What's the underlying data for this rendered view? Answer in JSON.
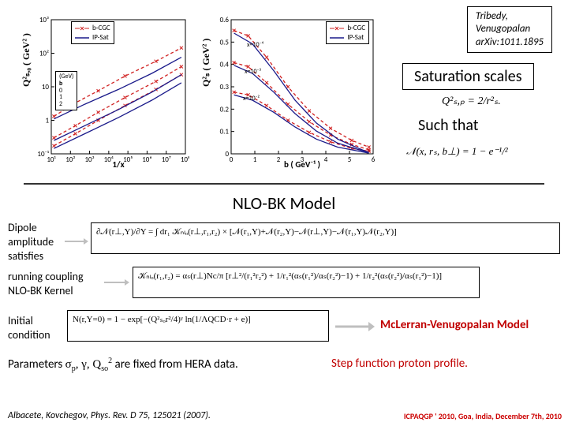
{
  "citation": {
    "l1": "Tribedy,",
    "l2": "Venugopalan",
    "l3": "arXiv:1011.1895"
  },
  "labels": {
    "saturation": "Saturation scales",
    "such_that": "Such that",
    "section": "NLO-BK Model",
    "dipole_l1": "Dipole",
    "dipole_l2": "amplitude",
    "dipole_l3": "satisfies",
    "rc_l1": "running coupling",
    "rc_l2": "NLO-BK Kernel",
    "ic_l1": "Initial",
    "ic_l2": "condition",
    "mv": "McLerran-Venugopalan Model",
    "params_pre": "Parameters ",
    "params_sym": "σₚ, γ, Q",
    "params_so": "so",
    "params_sq": "2",
    "params_post": " are fixed from HERA data.",
    "step": "Step function proton profile.",
    "footer_l": "Albacete, Kovchegov, Phys. Rev. D 75, 125021 (2007).",
    "footer_r": "ICPAQGP ' 2010, Goa, India, December 7th, 2010"
  },
  "formula1": "Q²ₛ,ₚ = 2/r²ₛ.",
  "formula2": "𝒩(x, rₛ, b⊥) = 1 − e⁻¹/²",
  "eq_dipole": "∂𝒩(r⊥,Y)/∂Y = ∫ dr₁ 𝒦ₙₗₒ(r⊥,r₁,r₂) × [𝒩(r₁,Y)+𝒩(r₂,Y)−𝒩(r⊥,Y)−𝒩(r₁,Y)𝒩(r₂,Y)]",
  "eq_kernel": "𝒦ₙₗₒ(r₁,r₂) = αₛ(r⊥)Nc/π [r⊥²/(r₁²r₂²) + 1/r₁²(αₛ(r₁²)/αₛ(r₂²)−1) + 1/r₂²(αₛ(r₂²)/αₛ(r₁²)−1)]",
  "eq_ic": "N(r,Y=0) = 1 − exp[−(Q²ₛₒr²/4)ᵞ ln(1/ΛQCD·r + e)]",
  "chart1": {
    "xlabel": "1/x",
    "ylabel": "Q²ₛ,₀ ( GeV² )",
    "xticks": [
      "10¹",
      "10²",
      "10³",
      "10⁴",
      "10⁵",
      "10⁶",
      "10⁷",
      "10⁸"
    ],
    "yticks": [
      "10⁻¹",
      "1",
      "10",
      "10²",
      "10³"
    ],
    "legend": [
      {
        "t": "b-CGC",
        "c": "#d02020",
        "dash": true
      },
      {
        "t": "IP-Sat",
        "c": "#1a1a8a",
        "dash": false
      }
    ],
    "inline_legend": [
      "(GeV)",
      "b",
      "0",
      "1",
      "2"
    ],
    "series": [
      {
        "c": "#d02020",
        "pts": [
          [
            0.02,
            0.06
          ],
          [
            0.18,
            0.15
          ],
          [
            0.35,
            0.25
          ],
          [
            0.55,
            0.36
          ],
          [
            0.78,
            0.48
          ],
          [
            0.97,
            0.59
          ]
        ]
      },
      {
        "c": "#d02020",
        "pts": [
          [
            0.02,
            0.12
          ],
          [
            0.18,
            0.21
          ],
          [
            0.35,
            0.31
          ],
          [
            0.55,
            0.42
          ],
          [
            0.78,
            0.54
          ],
          [
            0.97,
            0.65
          ]
        ]
      },
      {
        "c": "#d02020",
        "pts": [
          [
            0.02,
            0.28
          ],
          [
            0.18,
            0.38
          ],
          [
            0.35,
            0.47
          ],
          [
            0.55,
            0.58
          ],
          [
            0.78,
            0.69
          ],
          [
            0.97,
            0.79
          ]
        ]
      },
      {
        "c": "#1a1a8a",
        "pts": [
          [
            0.02,
            0.04
          ],
          [
            0.25,
            0.15
          ],
          [
            0.5,
            0.27
          ],
          [
            0.75,
            0.4
          ],
          [
            0.97,
            0.53
          ]
        ]
      },
      {
        "c": "#1a1a8a",
        "pts": [
          [
            0.02,
            0.1
          ],
          [
            0.25,
            0.21
          ],
          [
            0.5,
            0.33
          ],
          [
            0.75,
            0.46
          ],
          [
            0.97,
            0.59
          ]
        ]
      },
      {
        "c": "#1a1a8a",
        "pts": [
          [
            0.02,
            0.26
          ],
          [
            0.25,
            0.37
          ],
          [
            0.5,
            0.48
          ],
          [
            0.75,
            0.6
          ],
          [
            0.97,
            0.72
          ]
        ]
      }
    ]
  },
  "chart2": {
    "xlabel": "b ( GeV⁻¹ )",
    "ylabel": "Q²ₛ ( GeV² )",
    "xticks": [
      "0",
      "1",
      "2",
      "3",
      "4",
      "5",
      "6"
    ],
    "yticks": [
      "0",
      "0.1",
      "0.2",
      "0.3",
      "0.4",
      "0.5",
      "0.6"
    ],
    "legend": [
      {
        "t": "b-CGC",
        "c": "#d02020",
        "dash": true
      },
      {
        "t": "IP-Sat",
        "c": "#1a1a8a",
        "dash": false
      }
    ],
    "annot": [
      "x=10⁻⁴",
      "x=10⁻³",
      "x=10⁻²"
    ],
    "series": [
      {
        "c": "#d02020",
        "pts": [
          [
            0.02,
            0.92
          ],
          [
            0.12,
            0.88
          ],
          [
            0.25,
            0.72
          ],
          [
            0.4,
            0.5
          ],
          [
            0.55,
            0.32
          ],
          [
            0.7,
            0.19
          ],
          [
            0.85,
            0.1
          ],
          [
            0.97,
            0.05
          ]
        ]
      },
      {
        "c": "#d02020",
        "pts": [
          [
            0.02,
            0.68
          ],
          [
            0.12,
            0.65
          ],
          [
            0.25,
            0.53
          ],
          [
            0.4,
            0.37
          ],
          [
            0.55,
            0.24
          ],
          [
            0.7,
            0.14
          ],
          [
            0.85,
            0.07
          ],
          [
            0.97,
            0.03
          ]
        ]
      },
      {
        "c": "#d02020",
        "pts": [
          [
            0.02,
            0.46
          ],
          [
            0.12,
            0.44
          ],
          [
            0.25,
            0.36
          ],
          [
            0.4,
            0.25
          ],
          [
            0.55,
            0.16
          ],
          [
            0.7,
            0.09
          ],
          [
            0.85,
            0.04
          ],
          [
            0.97,
            0.02
          ]
        ]
      },
      {
        "c": "#1a1a8a",
        "pts": [
          [
            0.02,
            0.9
          ],
          [
            0.15,
            0.82
          ],
          [
            0.3,
            0.62
          ],
          [
            0.45,
            0.4
          ],
          [
            0.6,
            0.23
          ],
          [
            0.75,
            0.11
          ],
          [
            0.9,
            0.04
          ],
          [
            0.97,
            0.01
          ]
        ]
      },
      {
        "c": "#1a1a8a",
        "pts": [
          [
            0.02,
            0.66
          ],
          [
            0.15,
            0.6
          ],
          [
            0.3,
            0.46
          ],
          [
            0.45,
            0.3
          ],
          [
            0.6,
            0.17
          ],
          [
            0.75,
            0.08
          ],
          [
            0.9,
            0.03
          ],
          [
            0.97,
            0.01
          ]
        ]
      },
      {
        "c": "#1a1a8a",
        "pts": [
          [
            0.02,
            0.44
          ],
          [
            0.15,
            0.4
          ],
          [
            0.3,
            0.31
          ],
          [
            0.45,
            0.2
          ],
          [
            0.6,
            0.11
          ],
          [
            0.75,
            0.05
          ],
          [
            0.9,
            0.02
          ],
          [
            0.97,
            0.005
          ]
        ]
      }
    ]
  },
  "colors": {
    "red": "#d02020",
    "blue": "#1a1a8a",
    "arrow": "#bfbfbf",
    "mvred": "#c00000"
  }
}
